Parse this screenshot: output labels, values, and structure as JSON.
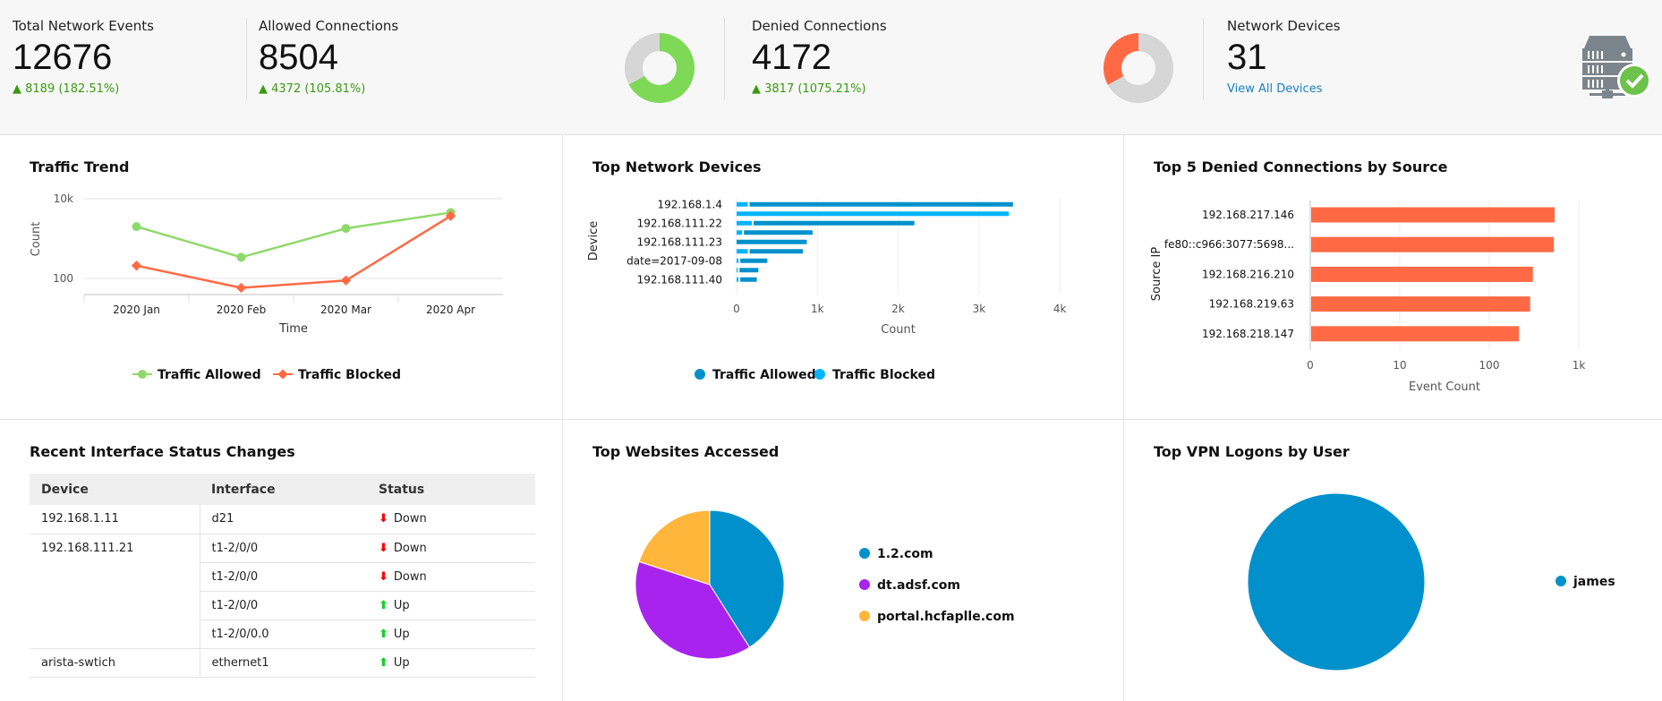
{
  "summary": {
    "total": {
      "title": "Total Network Events",
      "value": "12676",
      "delta": "8189 (182.51%)"
    },
    "allowed": {
      "title": "Allowed Connections",
      "value": "8504",
      "delta": "4372 (105.81%)",
      "fraction": 0.67,
      "color": "#7ed957"
    },
    "denied": {
      "title": "Denied Connections",
      "value": "4172",
      "delta": "3817 (1075.21%)",
      "fraction": 0.33,
      "color": "#ff6a45"
    },
    "devices": {
      "title": "Network Devices",
      "value": "31",
      "link": "View All Devices"
    }
  },
  "panels": {
    "traffic_trend": {
      "title": "Traffic Trend"
    },
    "top_devices": {
      "title": "Top Network Devices"
    },
    "top_denied": {
      "title": "Top 5 Denied Connections by Source"
    },
    "interface_changes": {
      "title": "Recent Interface Status Changes"
    },
    "top_websites": {
      "title": "Top Websites Accessed"
    },
    "top_vpn": {
      "title": "Top VPN Logons by User"
    }
  },
  "table": {
    "headers": [
      "Device",
      "Interface",
      "Status"
    ],
    "rows": [
      {
        "device": "192.168.1.11",
        "interface": "d21",
        "status": "Down"
      },
      {
        "device": "192.168.111.21",
        "interface": "t1-2/0/0",
        "status": "Down"
      },
      {
        "device": "",
        "interface": "t1-2/0/0",
        "status": "Down"
      },
      {
        "device": "",
        "interface": "t1-2/0/0",
        "status": "Up"
      },
      {
        "device": "",
        "interface": "t1-2/0/0.0",
        "status": "Up"
      },
      {
        "device": "arista-swtich",
        "interface": "ethernet1",
        "status": "Up"
      }
    ]
  },
  "chart_data": [
    {
      "id": "traffic_trend",
      "type": "line",
      "xlabel": "Time",
      "ylabel": "Count",
      "yscale": "log",
      "yticks": [
        "100",
        "10k"
      ],
      "categories": [
        "2020 Jan",
        "2020 Feb",
        "2020 Mar",
        "2020 Apr"
      ],
      "series": [
        {
          "name": "Traffic Allowed",
          "color": "#8fd96b",
          "values": [
            2000,
            340,
            1800,
            4500
          ]
        },
        {
          "name": "Traffic Blocked",
          "color": "#ff6a45",
          "values": [
            210,
            58,
            89,
            3700
          ]
        }
      ],
      "legend": "bottom"
    },
    {
      "id": "top_devices",
      "type": "bar",
      "orientation": "horizontal",
      "stacked": true,
      "xlabel": "Count",
      "ylabel": "Device",
      "xlim": [
        0,
        4000
      ],
      "xticks": [
        "0",
        "1k",
        "2k",
        "3k",
        "4k"
      ],
      "categories": [
        "192.168.1.4",
        "",
        "192.168.111.22",
        "",
        "192.168.111.23",
        "",
        "date=2017-09-08",
        "",
        "192.168.111.40"
      ],
      "series": [
        {
          "name": "Traffic Blocked",
          "color": "#00b4ff",
          "values": [
            150,
            3380,
            200,
            80,
            0,
            150,
            35,
            25,
            35
          ]
        },
        {
          "name": "Traffic Allowed",
          "color": "#0091cc",
          "values": [
            3270,
            0,
            2000,
            860,
            880,
            670,
            345,
            245,
            215
          ]
        }
      ],
      "legend": "bottom",
      "legend_order": [
        "Traffic Allowed",
        "Traffic Blocked"
      ]
    },
    {
      "id": "top_denied",
      "type": "bar",
      "orientation": "horizontal",
      "xscale": "log",
      "xlabel": "Event Count",
      "ylabel": "Source IP",
      "xticks": [
        "0",
        "10",
        "100",
        "1k"
      ],
      "categories": [
        "192.168.217.146",
        "fe80::c966:3077:5698...",
        "192.168.216.210",
        "192.168.219.63",
        "192.168.218.147"
      ],
      "values": [
        525,
        515,
        300,
        280,
        210
      ],
      "color": "#ff6a45"
    },
    {
      "id": "top_websites",
      "type": "pie",
      "labels": [
        "1.2.com",
        "dt.adsf.com",
        "portal.hcfaplle.com"
      ],
      "values": [
        41,
        39,
        20
      ],
      "colors": [
        "#0091cc",
        "#a824ee",
        "#ffb63b"
      ]
    },
    {
      "id": "top_vpn",
      "type": "pie",
      "labels": [
        "james"
      ],
      "values": [
        100
      ],
      "colors": [
        "#0091cc"
      ]
    }
  ]
}
